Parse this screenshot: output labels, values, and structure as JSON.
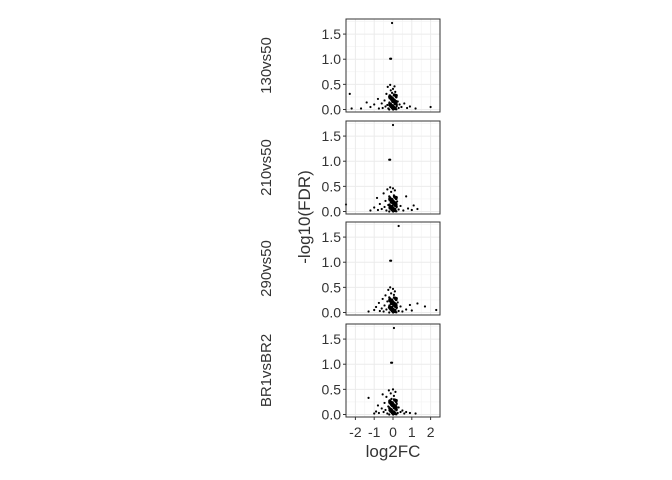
{
  "chart_data": {
    "type": "scatter",
    "xlabel": "log2FC",
    "ylabel": "-log10(FDR)",
    "xlim": [
      -2.5,
      2.5
    ],
    "ylim": [
      -0.05,
      1.8
    ],
    "x_ticks": [
      -2,
      -1,
      0,
      1,
      2
    ],
    "x_tick_labels": [
      "-2",
      "-1",
      "0",
      "1",
      "2"
    ],
    "y_ticks": [
      0.0,
      0.5,
      1.0,
      1.5
    ],
    "y_tick_labels": [
      "0.0",
      "0.5",
      "1.0",
      "1.5"
    ],
    "grid": true,
    "point_color": "#000000",
    "panels": [
      {
        "label": "130vs50",
        "points": [
          [
            -0.05,
            1.72
          ],
          [
            -0.15,
            1.01
          ],
          [
            -0.1,
            1.01
          ],
          [
            -2.3,
            0.31
          ],
          [
            -2.2,
            0.02
          ],
          [
            -1.7,
            0.02
          ],
          [
            -1.4,
            0.14
          ],
          [
            -1.2,
            0.05
          ],
          [
            -1.0,
            0.1
          ],
          [
            -0.8,
            0.21
          ],
          [
            -0.75,
            0.02
          ],
          [
            -0.6,
            0.12
          ],
          [
            -0.55,
            0.03
          ],
          [
            -0.45,
            0.18
          ],
          [
            -0.4,
            0.06
          ],
          [
            -0.35,
            0.31
          ],
          [
            -0.3,
            0.09
          ],
          [
            -0.28,
            0.45
          ],
          [
            -0.25,
            0.02
          ],
          [
            -0.2,
            0.26
          ],
          [
            -0.18,
            0.12
          ],
          [
            -0.15,
            0.49
          ],
          [
            -0.12,
            0.38
          ],
          [
            -0.1,
            0.05
          ],
          [
            -0.08,
            0.22
          ],
          [
            -0.05,
            0.33
          ],
          [
            -0.03,
            0.15
          ],
          [
            0.0,
            0.41
          ],
          [
            0.02,
            0.08
          ],
          [
            0.04,
            0.28
          ],
          [
            0.06,
            0.18
          ],
          [
            0.08,
            0.46
          ],
          [
            0.1,
            0.11
          ],
          [
            0.12,
            0.35
          ],
          [
            0.15,
            0.04
          ],
          [
            0.18,
            0.24
          ],
          [
            0.2,
            0.07
          ],
          [
            0.25,
            0.16
          ],
          [
            0.3,
            0.03
          ],
          [
            0.35,
            0.1
          ],
          [
            0.45,
            0.05
          ],
          [
            0.6,
            0.12
          ],
          [
            0.75,
            0.03
          ],
          [
            0.9,
            0.06
          ],
          [
            1.2,
            0.02
          ],
          [
            2.0,
            0.05
          ]
        ]
      },
      {
        "label": "210vs50",
        "points": [
          [
            0.0,
            1.72
          ],
          [
            -0.2,
            1.03
          ],
          [
            -0.15,
            1.03
          ],
          [
            -2.5,
            0.14
          ],
          [
            -1.2,
            0.02
          ],
          [
            -1.0,
            0.08
          ],
          [
            -0.85,
            0.27
          ],
          [
            -0.8,
            0.03
          ],
          [
            -0.7,
            0.15
          ],
          [
            -0.6,
            0.05
          ],
          [
            -0.5,
            0.36
          ],
          [
            -0.45,
            0.09
          ],
          [
            -0.4,
            0.21
          ],
          [
            -0.35,
            0.02
          ],
          [
            -0.3,
            0.44
          ],
          [
            -0.25,
            0.13
          ],
          [
            -0.2,
            0.3
          ],
          [
            -0.18,
            0.06
          ],
          [
            -0.15,
            0.48
          ],
          [
            -0.12,
            0.18
          ],
          [
            -0.1,
            0.39
          ],
          [
            -0.08,
            0.03
          ],
          [
            -0.05,
            0.25
          ],
          [
            -0.02,
            0.12
          ],
          [
            0.0,
            0.46
          ],
          [
            0.03,
            0.08
          ],
          [
            0.05,
            0.32
          ],
          [
            0.08,
            0.17
          ],
          [
            0.1,
            0.42
          ],
          [
            0.12,
            0.05
          ],
          [
            0.15,
            0.27
          ],
          [
            0.18,
            0.1
          ],
          [
            0.22,
            0.2
          ],
          [
            0.3,
            0.04
          ],
          [
            0.4,
            0.11
          ],
          [
            0.55,
            0.02
          ],
          [
            0.7,
            0.3
          ],
          [
            0.8,
            0.06
          ],
          [
            1.0,
            0.03
          ],
          [
            1.1,
            0.12
          ],
          [
            1.3,
            0.05
          ]
        ]
      },
      {
        "label": "290vs50",
        "points": [
          [
            0.3,
            1.72
          ],
          [
            -0.15,
            1.03
          ],
          [
            -0.1,
            1.03
          ],
          [
            -1.3,
            0.02
          ],
          [
            -1.0,
            0.05
          ],
          [
            -0.9,
            0.11
          ],
          [
            -0.75,
            0.19
          ],
          [
            -0.7,
            0.03
          ],
          [
            -0.6,
            0.08
          ],
          [
            -0.55,
            0.27
          ],
          [
            -0.5,
            0.02
          ],
          [
            -0.45,
            0.14
          ],
          [
            -0.4,
            0.34
          ],
          [
            -0.35,
            0.06
          ],
          [
            -0.3,
            0.22
          ],
          [
            -0.25,
            0.45
          ],
          [
            -0.22,
            0.1
          ],
          [
            -0.2,
            0.3
          ],
          [
            -0.15,
            0.5
          ],
          [
            -0.12,
            0.17
          ],
          [
            -0.1,
            0.38
          ],
          [
            -0.08,
            0.04
          ],
          [
            -0.05,
            0.26
          ],
          [
            -0.02,
            0.12
          ],
          [
            0.0,
            0.47
          ],
          [
            0.03,
            0.07
          ],
          [
            0.05,
            0.35
          ],
          [
            0.08,
            0.19
          ],
          [
            0.1,
            0.42
          ],
          [
            0.13,
            0.05
          ],
          [
            0.16,
            0.28
          ],
          [
            0.2,
            0.1
          ],
          [
            0.25,
            0.2
          ],
          [
            0.3,
            0.03
          ],
          [
            0.4,
            0.12
          ],
          [
            0.5,
            0.02
          ],
          [
            0.7,
            0.06
          ],
          [
            0.9,
            0.15
          ],
          [
            1.0,
            0.04
          ],
          [
            1.3,
            0.18
          ],
          [
            1.7,
            0.12
          ],
          [
            2.3,
            0.05
          ]
        ]
      },
      {
        "label": "BR1vsBR2",
        "points": [
          [
            0.05,
            1.72
          ],
          [
            -0.1,
            1.03
          ],
          [
            -0.05,
            1.03
          ],
          [
            -1.3,
            0.33
          ],
          [
            -1.0,
            0.02
          ],
          [
            -0.9,
            0.06
          ],
          [
            -0.8,
            0.18
          ],
          [
            -0.75,
            0.03
          ],
          [
            -0.6,
            0.12
          ],
          [
            -0.55,
            0.4
          ],
          [
            -0.5,
            0.05
          ],
          [
            -0.45,
            0.23
          ],
          [
            -0.4,
            0.09
          ],
          [
            -0.35,
            0.35
          ],
          [
            -0.3,
            0.02
          ],
          [
            -0.25,
            0.16
          ],
          [
            -0.22,
            0.48
          ],
          [
            -0.2,
            0.27
          ],
          [
            -0.15,
            0.07
          ],
          [
            -0.12,
            0.42
          ],
          [
            -0.1,
            0.19
          ],
          [
            -0.08,
            0.31
          ],
          [
            -0.05,
            0.04
          ],
          [
            -0.02,
            0.24
          ],
          [
            0.0,
            0.5
          ],
          [
            0.03,
            0.13
          ],
          [
            0.05,
            0.37
          ],
          [
            0.08,
            0.06
          ],
          [
            0.1,
            0.29
          ],
          [
            0.13,
            0.45
          ],
          [
            0.16,
            0.1
          ],
          [
            0.2,
            0.21
          ],
          [
            0.25,
            0.03
          ],
          [
            0.3,
            0.14
          ],
          [
            0.4,
            0.05
          ],
          [
            0.5,
            0.08
          ],
          [
            0.6,
            0.02
          ],
          [
            0.7,
            0.05
          ],
          [
            0.9,
            0.03
          ],
          [
            1.2,
            0.02
          ]
        ]
      }
    ]
  }
}
